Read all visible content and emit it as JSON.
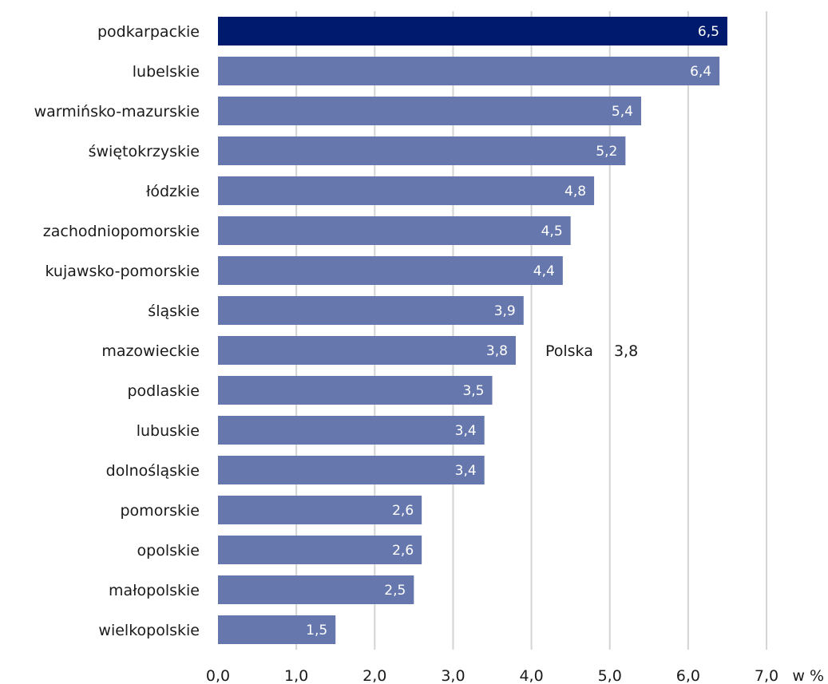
{
  "chart_data": {
    "type": "bar",
    "orientation": "horizontal",
    "categories": [
      "podkarpackie",
      "lubelskie",
      "warmińsko-mazurskie",
      "świętokrzyskie",
      "łódzkie",
      "zachodniopomorskie",
      "kujawsko-pomorskie",
      "śląskie",
      "mazowieckie",
      "podlaskie",
      "lubuskie",
      "dolnośląskie",
      "pomorskie",
      "opolskie",
      "małopolskie",
      "wielkopolskie"
    ],
    "values": [
      6.5,
      6.4,
      5.4,
      5.2,
      4.8,
      4.5,
      4.4,
      3.9,
      3.8,
      3.5,
      3.4,
      3.4,
      2.6,
      2.6,
      2.5,
      1.5
    ],
    "value_labels": [
      "6,5",
      "6,4",
      "5,4",
      "5,2",
      "4,8",
      "4,5",
      "4,4",
      "3,9",
      "3,8",
      "3,5",
      "3,4",
      "3,4",
      "2,6",
      "2,6",
      "2,5",
      "1,5"
    ],
    "highlight_index": 0,
    "xlim": [
      0,
      7
    ],
    "x_ticks": [
      0,
      1,
      2,
      3,
      4,
      5,
      6,
      7
    ],
    "x_tick_labels": [
      "0,0",
      "1,0",
      "2,0",
      "3,0",
      "4,0",
      "5,0",
      "6,0",
      "7,0"
    ],
    "x_unit": "w %",
    "grid": "vertical",
    "reference": {
      "label": "Polska",
      "value": 3.8,
      "value_label": "3,8",
      "category": "mazowieckie"
    },
    "colors": {
      "bar": "#6677ad",
      "highlight": "#001a6e",
      "grid": "#d4d4d4",
      "value_text": "#ffffff",
      "text": "#1a1a1a"
    }
  }
}
